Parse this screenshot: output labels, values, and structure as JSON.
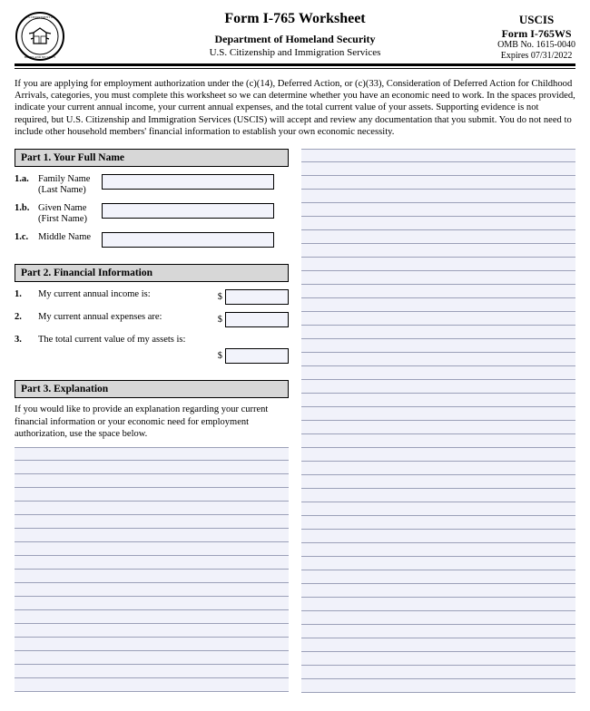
{
  "header": {
    "title": "Form I-765 Worksheet",
    "dept": "Department of Homeland Security",
    "agency": "U.S. Citizenship and Immigration Services",
    "r1": "USCIS",
    "r2": "Form I-765WS",
    "r3": "OMB No. 1615-0040",
    "r4": "Expires 07/31/2022"
  },
  "intro": "If you are applying for employment authorization under the (c)(14), Deferred Action, or (c)(33), Consideration of Deferred Action for Childhood Arrivals, categories, you must complete this worksheet so we can determine whether you have an economic need to work. In the spaces provided, indicate your current annual income, your current annual expenses, and the total current value of your assets. Supporting evidence is not required, but U.S. Citizenship and Immigration Services (USCIS) will accept and review any documentation that you submit.  You do not need to include other household members' financial information to establish your own economic necessity.",
  "part1": {
    "title": "Part 1.  Your Full Name",
    "a_idx": "1.a.",
    "a_lbl1": "Family Name",
    "a_lbl2": "(Last Name)",
    "b_idx": "1.b.",
    "b_lbl1": "Given Name",
    "b_lbl2": "(First Name)",
    "c_idx": "1.c.",
    "c_lbl1": "Middle Name"
  },
  "part2": {
    "title": "Part 2.  Financial Information",
    "q1_idx": "1.",
    "q1": "My current annual income is:",
    "q2_idx": "2.",
    "q2": "My current annual expenses are:",
    "q3_idx": "3.",
    "q3": "The total current value of my assets is:",
    "dollar": "$"
  },
  "part3": {
    "title": "Part 3.  Explanation",
    "text": "If you would like to provide an explanation regarding your current financial information or your economic need for employment authorization, use the space below."
  },
  "layout": {
    "rule_line_color": "#9ba0b8",
    "input_bg": "#f2f3fb",
    "bar_bg": "#d7d7d7",
    "left_lines": 18,
    "right_lines": 40
  }
}
